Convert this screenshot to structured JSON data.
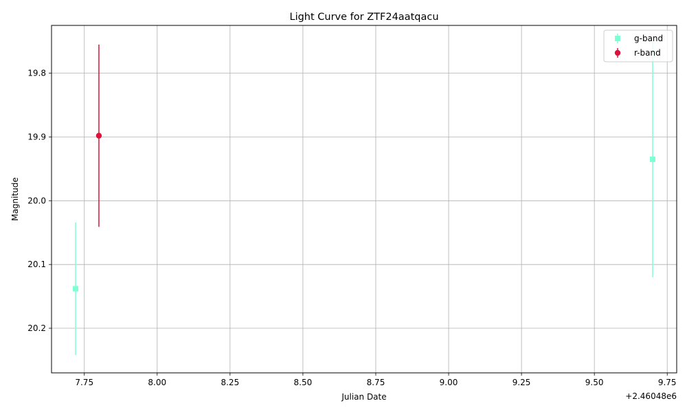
{
  "chart_data": {
    "type": "scatter",
    "title": "Light Curve for ZTF24aatqacu",
    "xlabel": "Julian Date",
    "ylabel": "Magnitude",
    "x_offset_label": "+2.46048e6",
    "xlim": [
      7.6375,
      9.7825
    ],
    "ylim": [
      20.27,
      19.725
    ],
    "y_inverted": true,
    "x_ticks": [
      7.75,
      8.0,
      8.25,
      8.5,
      8.75,
      9.0,
      9.25,
      9.5,
      9.75
    ],
    "x_tick_labels": [
      "7.75",
      "8.00",
      "8.25",
      "8.50",
      "8.75",
      "9.00",
      "9.25",
      "9.50",
      "9.75"
    ],
    "y_ticks": [
      19.8,
      19.9,
      20.0,
      20.1,
      20.2
    ],
    "y_tick_labels": [
      "19.8",
      "19.9",
      "20.0",
      "20.1",
      "20.2"
    ],
    "grid": true,
    "legend_position": "top-right",
    "series": [
      {
        "name": "g-band",
        "color": "#7fffd4",
        "marker": "square",
        "points": [
          {
            "x": 7.72,
            "y": 20.138,
            "err": 0.104
          },
          {
            "x": 9.7,
            "y": 19.935,
            "err": 0.185
          }
        ]
      },
      {
        "name": "r-band",
        "color": "#dc143c",
        "marker": "circle",
        "points": [
          {
            "x": 7.8,
            "y": 19.898,
            "err": 0.143
          }
        ]
      }
    ]
  }
}
